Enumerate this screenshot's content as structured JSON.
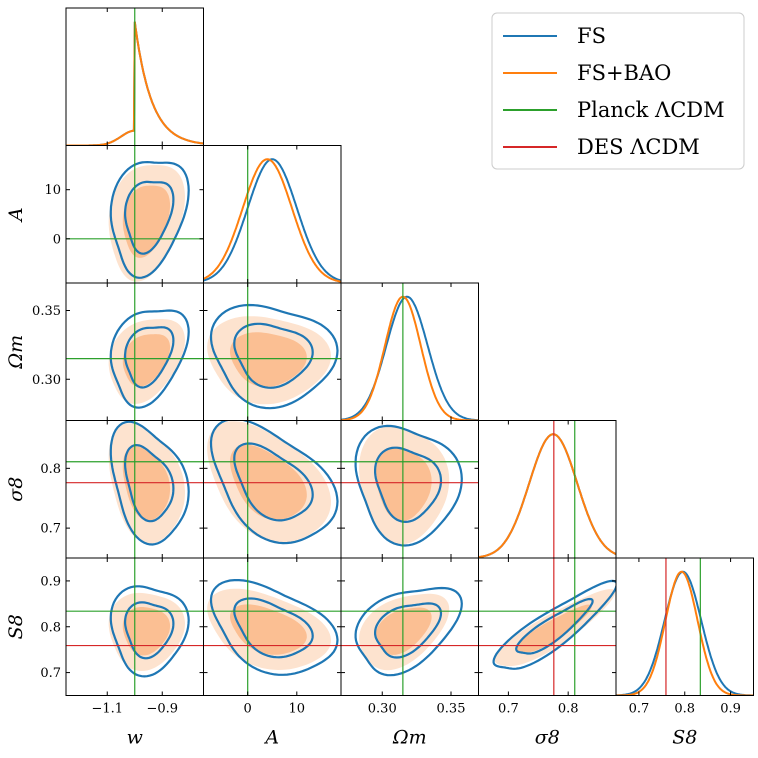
{
  "chart_data": {
    "type": "corner",
    "parameters": [
      {
        "key": "w",
        "label": "w",
        "range": [
          -1.25,
          -0.75
        ],
        "ticks": [
          -1.1,
          -0.9
        ],
        "tick_labels": [
          "−1.1",
          "−0.9"
        ]
      },
      {
        "key": "A",
        "label": "A",
        "range": [
          -9,
          19
        ],
        "ticks": [
          0,
          10
        ],
        "tick_labels": [
          "0",
          "10"
        ]
      },
      {
        "key": "Om",
        "label": "Ωm",
        "range": [
          0.27,
          0.37
        ],
        "ticks": [
          0.3,
          0.35
        ],
        "tick_labels": [
          "0.30",
          "0.35"
        ]
      },
      {
        "key": "s8",
        "label": "σ8",
        "range": [
          0.65,
          0.88
        ],
        "ticks": [
          0.7,
          0.8
        ],
        "tick_labels": [
          "0.7",
          "0.8"
        ]
      },
      {
        "key": "S8",
        "label": "S8",
        "range": [
          0.65,
          0.95
        ],
        "ticks": [
          0.7,
          0.8,
          0.9
        ],
        "tick_labels": [
          "0.7",
          "0.8",
          "0.9"
        ]
      }
    ],
    "legend": {
      "placement": "top-right",
      "entries": [
        {
          "label": "FS",
          "color": "#1f77b4"
        },
        {
          "label": "FS+BAO",
          "color": "#ff7f0e"
        },
        {
          "label": "Planck ΛCDM",
          "color": "#2ca02c"
        },
        {
          "label": "DES ΛCDM",
          "color": "#d62728"
        }
      ]
    },
    "reference_lines": {
      "planck": {
        "w": -1.0,
        "A": 0.0,
        "Om": 0.315,
        "s8": 0.811,
        "S8": 0.834,
        "color": "#2ca02c"
      },
      "des": {
        "s8": 0.776,
        "S8": 0.759,
        "color": "#d62728"
      }
    },
    "series": [
      {
        "name": "FS",
        "color": "#1f77b4",
        "style": "contour",
        "mean": {
          "w": -0.95,
          "A": 5.0,
          "Om": 0.318,
          "s8": 0.775,
          "S8": 0.796
        },
        "sd": {
          "w": 0.055,
          "A": 5.0,
          "Om": 0.015,
          "s8": 0.04,
          "S8": 0.04
        }
      },
      {
        "name": "FS+BAO",
        "color": "#ff7f0e",
        "style": "filled",
        "mean": {
          "w": -0.96,
          "A": 4.0,
          "Om": 0.315,
          "s8": 0.775,
          "S8": 0.793
        },
        "sd": {
          "w": 0.055,
          "A": 5.0,
          "Om": 0.013,
          "s8": 0.04,
          "S8": 0.035
        }
      }
    ],
    "correlations": {
      "w|A": 0.3,
      "w|Om": 0.35,
      "w|s8": -0.2,
      "w|S8": 0.1,
      "A|Om": 0.0,
      "A|s8": -0.35,
      "A|S8": -0.3,
      "Om|s8": 0.0,
      "Om|S8": 0.45,
      "s8|S8": 0.88
    }
  }
}
